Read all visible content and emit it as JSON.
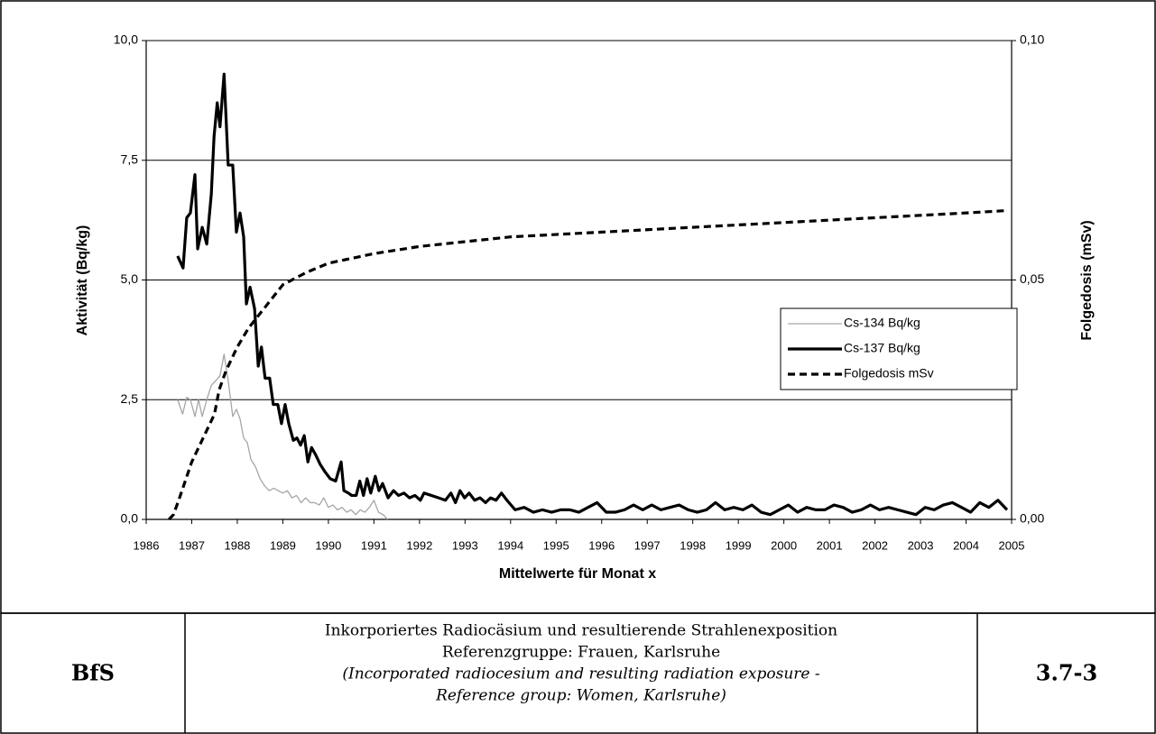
{
  "chart_data": {
    "type": "line",
    "x_label": "Mittelwerte für Monat x",
    "y_label": "Aktivität (Bq/kg)",
    "y2_label": "Folgedosis (mSv)",
    "xlim": [
      1986,
      2005
    ],
    "xticks": [
      1986,
      1987,
      1988,
      1989,
      1990,
      1991,
      1992,
      1993,
      1994,
      1995,
      1996,
      1997,
      1998,
      1999,
      2000,
      2001,
      2002,
      2003,
      2004,
      2005
    ],
    "ylim": [
      0,
      10
    ],
    "yticks": [
      {
        "value": 0,
        "label": "0,0"
      },
      {
        "value": 2.5,
        "label": "2,5"
      },
      {
        "value": 5,
        "label": "5,0"
      },
      {
        "value": 7.5,
        "label": "7,5"
      },
      {
        "value": 10,
        "label": "10,0"
      }
    ],
    "y2lim": [
      0,
      0.1
    ],
    "y2ticks": [
      {
        "value": 0,
        "label": "0,00"
      },
      {
        "value": 0.05,
        "label": "0,05"
      },
      {
        "value": 0.1,
        "label": "0,10"
      }
    ],
    "grid": true,
    "legend": "right",
    "series": [
      {
        "name": "Cs-134 Bq/kg",
        "color": "#a6a6a6",
        "width": 1.3,
        "dash": false,
        "x": [
          1986.69,
          1986.8,
          1986.89,
          1986.97,
          1987.07,
          1987.15,
          1987.23,
          1987.33,
          1987.43,
          1987.53,
          1987.62,
          1987.71,
          1987.8,
          1987.9,
          1987.98,
          1988.06,
          1988.14,
          1988.22,
          1988.3,
          1988.4,
          1988.5,
          1988.6,
          1988.7,
          1988.8,
          1988.9,
          1989.0,
          1989.1,
          1989.2,
          1989.3,
          1989.4,
          1989.5,
          1989.6,
          1989.7,
          1989.8,
          1989.9,
          1990.0,
          1990.1,
          1990.2,
          1990.3,
          1990.4,
          1990.5,
          1990.6,
          1990.7,
          1990.8,
          1990.9,
          1991.0,
          1991.1,
          1991.2,
          1991.3
        ],
        "values": [
          2.5,
          2.2,
          2.55,
          2.5,
          2.15,
          2.5,
          2.15,
          2.5,
          2.8,
          2.9,
          3.0,
          3.45,
          2.9,
          2.15,
          2.3,
          2.1,
          1.7,
          1.6,
          1.25,
          1.1,
          0.85,
          0.7,
          0.6,
          0.65,
          0.6,
          0.55,
          0.6,
          0.45,
          0.5,
          0.35,
          0.45,
          0.35,
          0.35,
          0.3,
          0.45,
          0.25,
          0.3,
          0.2,
          0.25,
          0.15,
          0.2,
          0.1,
          0.2,
          0.15,
          0.25,
          0.4,
          0.15,
          0.1,
          0.0
        ]
      },
      {
        "name": "Cs-137 Bq/kg",
        "color": "#000000",
        "width": 3.2,
        "dash": false,
        "x": [
          1986.69,
          1986.81,
          1986.89,
          1986.97,
          1987.07,
          1987.13,
          1987.23,
          1987.33,
          1987.43,
          1987.49,
          1987.56,
          1987.62,
          1987.71,
          1987.8,
          1987.9,
          1987.98,
          1988.06,
          1988.14,
          1988.2,
          1988.28,
          1988.38,
          1988.46,
          1988.53,
          1988.61,
          1988.71,
          1988.79,
          1988.89,
          1988.97,
          1989.05,
          1989.13,
          1989.23,
          1989.31,
          1989.39,
          1989.47,
          1989.55,
          1989.63,
          1989.72,
          1989.82,
          1989.92,
          1990.04,
          1990.16,
          1990.28,
          1990.34,
          1990.44,
          1990.51,
          1990.61,
          1990.69,
          1990.77,
          1990.85,
          1990.93,
          1991.03,
          1991.11,
          1991.19,
          1991.31,
          1991.43,
          1991.54,
          1991.66,
          1991.78,
          1991.9,
          1992.02,
          1992.1,
          1992.26,
          1992.42,
          1992.57,
          1992.69,
          1992.79,
          1992.89,
          1992.99,
          1993.09,
          1993.21,
          1993.33,
          1993.45,
          1993.56,
          1993.68,
          1993.8,
          1993.92,
          1994.1,
          1994.3,
          1994.5,
          1994.7,
          1994.9,
          1995.1,
          1995.3,
          1995.5,
          1995.7,
          1995.9,
          1996.1,
          1996.3,
          1996.5,
          1996.7,
          1996.9,
          1997.1,
          1997.3,
          1997.5,
          1997.7,
          1997.9,
          1998.1,
          1998.3,
          1998.5,
          1998.7,
          1998.9,
          1999.1,
          1999.3,
          1999.5,
          1999.7,
          1999.9,
          2000.1,
          2000.3,
          2000.5,
          2000.7,
          2000.9,
          2001.1,
          2001.3,
          2001.5,
          2001.7,
          2001.9,
          2002.1,
          2002.3,
          2002.5,
          2002.7,
          2002.9,
          2003.1,
          2003.3,
          2003.5,
          2003.7,
          2003.9,
          2004.1,
          2004.3,
          2004.5,
          2004.7,
          2004.9
        ],
        "values": [
          5.5,
          5.25,
          6.3,
          6.4,
          7.2,
          5.65,
          6.1,
          5.75,
          6.8,
          8.0,
          8.7,
          8.2,
          9.3,
          7.4,
          7.4,
          6.0,
          6.4,
          5.9,
          4.5,
          4.85,
          4.4,
          3.2,
          3.6,
          2.95,
          2.95,
          2.4,
          2.4,
          2.0,
          2.4,
          2.0,
          1.65,
          1.7,
          1.55,
          1.75,
          1.2,
          1.5,
          1.35,
          1.15,
          1.0,
          0.85,
          0.8,
          1.2,
          0.6,
          0.55,
          0.5,
          0.5,
          0.8,
          0.5,
          0.85,
          0.55,
          0.9,
          0.6,
          0.75,
          0.45,
          0.6,
          0.5,
          0.55,
          0.45,
          0.5,
          0.4,
          0.55,
          0.5,
          0.45,
          0.4,
          0.55,
          0.35,
          0.6,
          0.45,
          0.55,
          0.4,
          0.45,
          0.35,
          0.45,
          0.4,
          0.55,
          0.4,
          0.2,
          0.25,
          0.15,
          0.2,
          0.15,
          0.2,
          0.2,
          0.15,
          0.25,
          0.35,
          0.15,
          0.15,
          0.2,
          0.3,
          0.2,
          0.3,
          0.2,
          0.25,
          0.3,
          0.2,
          0.15,
          0.2,
          0.35,
          0.2,
          0.25,
          0.2,
          0.3,
          0.15,
          0.1,
          0.2,
          0.3,
          0.15,
          0.25,
          0.2,
          0.2,
          0.3,
          0.25,
          0.15,
          0.2,
          0.3,
          0.2,
          0.25,
          0.2,
          0.15,
          0.1,
          0.25,
          0.2,
          0.3,
          0.35,
          0.25,
          0.15,
          0.35,
          0.25,
          0.4,
          0.2
        ]
      },
      {
        "name": "Folgedosis mSv",
        "color": "#000000",
        "width": 3.2,
        "dash": true,
        "axis": "y2",
        "x": [
          1986.5,
          1986.6,
          1986.75,
          1987.0,
          1987.25,
          1987.5,
          1987.6,
          1987.75,
          1988.0,
          1988.25,
          1988.5,
          1988.75,
          1989.0,
          1989.5,
          1990.0,
          1990.5,
          1991.0,
          1992.0,
          1993.0,
          1994.0,
          1995.0,
          1996.0,
          1997.0,
          1998.0,
          1999.0,
          2000.0,
          2001.0,
          2002.0,
          2003.0,
          2004.0,
          2004.9
        ],
        "values": [
          0,
          0.001,
          0.005,
          0.012,
          0.017,
          0.022,
          0.027,
          0.031,
          0.036,
          0.04,
          0.043,
          0.046,
          0.049,
          0.0515,
          0.0535,
          0.0545,
          0.0555,
          0.057,
          0.058,
          0.059,
          0.0595,
          0.06,
          0.0605,
          0.061,
          0.0615,
          0.062,
          0.0625,
          0.063,
          0.0635,
          0.064,
          0.0645
        ]
      }
    ]
  },
  "footer": {
    "left": "BfS",
    "lines": [
      "Inkorporiertes Radiocäsium und resultierende Strahlenexposition",
      "Referenzgruppe: Frauen, Karlsruhe",
      "(Incorporated radiocesium and resulting radiation exposure -",
      "Reference group: Women, Karlsruhe)"
    ],
    "right": "3.7-3"
  }
}
